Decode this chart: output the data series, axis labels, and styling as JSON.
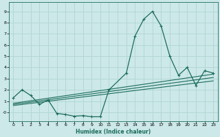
{
  "xlabel": "Humidex (Indice chaleur)",
  "bg_color": "#cce8e8",
  "grid_color": "#b0d4d4",
  "line_color": "#1a6b5a",
  "xlim": [
    -0.5,
    23.5
  ],
  "ylim": [
    -0.8,
    9.8
  ],
  "xticks": [
    0,
    1,
    2,
    3,
    4,
    5,
    6,
    7,
    8,
    9,
    10,
    11,
    12,
    13,
    14,
    15,
    16,
    17,
    18,
    19,
    20,
    21,
    22,
    23
  ],
  "yticks": [
    0,
    1,
    2,
    3,
    4,
    5,
    6,
    7,
    8,
    9
  ],
  "ytick_labels": [
    "-0",
    "1",
    "2",
    "3",
    "4",
    "5",
    "6",
    "7",
    "8",
    "9"
  ],
  "main_x": [
    0,
    1,
    2,
    3,
    4,
    5,
    6,
    7,
    8,
    9,
    10,
    11,
    13,
    14,
    15,
    16,
    17,
    18,
    19,
    20,
    21,
    22,
    23
  ],
  "main_y": [
    1.3,
    2.0,
    1.5,
    0.7,
    1.1,
    -0.1,
    -0.2,
    -0.35,
    -0.3,
    -0.4,
    -0.4,
    2.0,
    3.5,
    6.8,
    8.3,
    9.0,
    7.7,
    5.0,
    3.3,
    4.0,
    2.4,
    3.7,
    3.5
  ],
  "trend_lines": [
    {
      "x": [
        0,
        23
      ],
      "y": [
        0.8,
        3.4
      ]
    },
    {
      "x": [
        0,
        23
      ],
      "y": [
        0.7,
        3.1
      ]
    },
    {
      "x": [
        0,
        23
      ],
      "y": [
        0.6,
        2.8
      ]
    }
  ]
}
